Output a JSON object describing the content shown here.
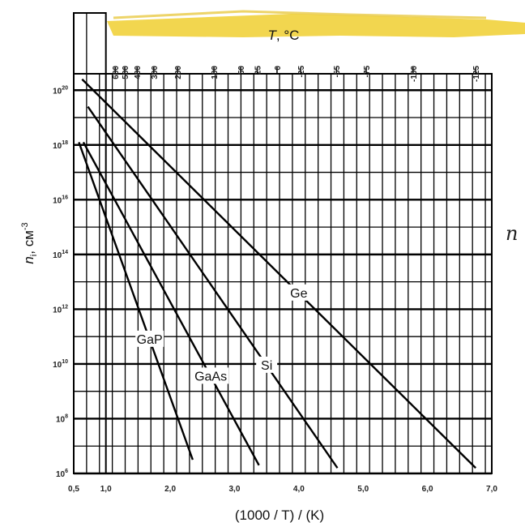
{
  "chart_data": {
    "type": "line",
    "title": "",
    "xlabel": "(1000 / T) / (K)",
    "ylabel": "n_i, см^-3",
    "top_axis_label": "T, °C",
    "x_range": [
      0.5,
      7.0
    ],
    "y_log_range": [
      6,
      20.6
    ],
    "y_scale": "log10",
    "grid": true,
    "x_ticks": [
      {
        "value": 0.5,
        "label": "0,5"
      },
      {
        "value": 1.0,
        "label": "1,0"
      },
      {
        "value": 2.0,
        "label": "2,0"
      },
      {
        "value": 3.0,
        "label": "3,0"
      },
      {
        "value": 4.0,
        "label": "4,0"
      },
      {
        "value": 5.0,
        "label": "5,0"
      },
      {
        "value": 6.0,
        "label": "6,0"
      },
      {
        "value": 7.0,
        "label": "7,0"
      }
    ],
    "y_ticks": [
      {
        "exp": 6,
        "label": "10",
        "sup": "6"
      },
      {
        "exp": 8,
        "label": "10",
        "sup": "8"
      },
      {
        "exp": 10,
        "label": "10",
        "sup": "10"
      },
      {
        "exp": 12,
        "label": "10",
        "sup": "12"
      },
      {
        "exp": 14,
        "label": "10",
        "sup": "14"
      },
      {
        "exp": 16,
        "label": "10",
        "sup": "16"
      },
      {
        "exp": 18,
        "label": "10",
        "sup": "18"
      },
      {
        "exp": 20,
        "label": "10",
        "sup": "20"
      }
    ],
    "top_ticks": [
      "600",
      "500",
      "400",
      "300",
      "200",
      "100",
      "50",
      "25",
      "0",
      "-25",
      "-55",
      "-75",
      "-100",
      "-125"
    ],
    "series": [
      {
        "name": "Ge",
        "x": [
          0.63,
          6.75
        ],
        "y_log": [
          20.4,
          6.2
        ]
      },
      {
        "name": "Si",
        "x": [
          0.72,
          4.6
        ],
        "y_log": [
          19.4,
          6.2
        ]
      },
      {
        "name": "GaAs",
        "x": [
          0.65,
          3.38
        ],
        "y_log": [
          18.1,
          6.3
        ]
      },
      {
        "name": "GaP",
        "x": [
          0.58,
          2.35
        ],
        "y_log": [
          18.1,
          6.5
        ]
      }
    ]
  },
  "side_text": "n"
}
